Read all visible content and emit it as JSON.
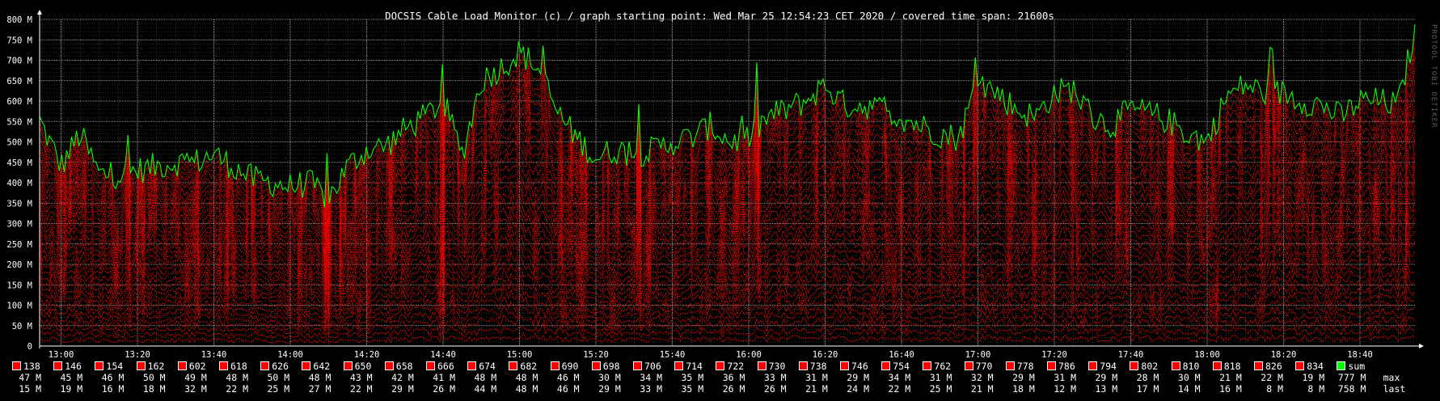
{
  "window": {
    "watermark": "PROTOOL TOBI OETIKER"
  },
  "chart_data": {
    "type": "area",
    "title": "DOCSIS Cable Load Monitor (c) / graph starting point: Wed Mar 25 12:54:23 CET 2020 / covered time span: 21600s",
    "xlabel": "",
    "ylabel": "",
    "x_ticks": [
      "13:00",
      "13:20",
      "13:40",
      "14:00",
      "14:20",
      "14:40",
      "15:00",
      "15:20",
      "15:40",
      "16:00",
      "16:20",
      "16:40",
      "17:00",
      "17:20",
      "17:40",
      "18:00",
      "18:20",
      "18:40"
    ],
    "x_range": [
      "12:54:23",
      "18:54:23"
    ],
    "y_ticks": [
      "0",
      "50 M",
      "100 M",
      "150 M",
      "200 M",
      "250 M",
      "300 M",
      "350 M",
      "400 M",
      "450 M",
      "500 M",
      "550 M",
      "600 M",
      "650 M",
      "700 M",
      "750 M",
      "800 M"
    ],
    "ylim": [
      0,
      800
    ],
    "grid": true,
    "legend_position": "bottom",
    "sum_profile": {
      "name": "sum",
      "x": [
        "12:54",
        "13:00",
        "13:05",
        "13:10",
        "13:15",
        "13:20",
        "13:25",
        "13:30",
        "13:35",
        "13:40",
        "13:45",
        "13:50",
        "13:55",
        "14:00",
        "14:05",
        "14:10",
        "14:15",
        "14:20",
        "14:25",
        "14:30",
        "14:35",
        "14:40",
        "14:45",
        "14:50",
        "14:55",
        "15:00",
        "15:05",
        "15:10",
        "15:15",
        "15:20",
        "15:25",
        "15:30",
        "15:35",
        "15:40",
        "15:45",
        "15:50",
        "15:55",
        "16:00",
        "16:05",
        "16:10",
        "16:15",
        "16:20",
        "16:25",
        "16:30",
        "16:35",
        "16:40",
        "16:45",
        "16:50",
        "16:55",
        "17:00",
        "17:05",
        "17:10",
        "17:15",
        "17:20",
        "17:25",
        "17:30",
        "17:35",
        "17:40",
        "17:45",
        "17:50",
        "17:55",
        "18:00",
        "18:05",
        "18:10",
        "18:15",
        "18:20",
        "18:25",
        "18:30",
        "18:35",
        "18:40",
        "18:45",
        "18:50",
        "18:54"
      ],
      "values": [
        560,
        440,
        520,
        420,
        420,
        430,
        440,
        450,
        450,
        470,
        440,
        410,
        400,
        390,
        400,
        360,
        440,
        480,
        490,
        530,
        560,
        600,
        470,
        650,
        680,
        720,
        680,
        570,
        510,
        460,
        480,
        470,
        480,
        500,
        510,
        540,
        500,
        510,
        560,
        580,
        600,
        640,
        590,
        590,
        580,
        560,
        540,
        520,
        510,
        650,
        620,
        580,
        560,
        620,
        630,
        560,
        540,
        580,
        570,
        550,
        520,
        500,
        610,
        640,
        620,
        620,
        600,
        590,
        560,
        600,
        600,
        590,
        760
      ]
    },
    "series": [
      {
        "name": "138",
        "max": "47 M",
        "last": "15 M",
        "color": "#ff0000"
      },
      {
        "name": "146",
        "max": "45 M",
        "last": "19 M",
        "color": "#ff0000"
      },
      {
        "name": "154",
        "max": "46 M",
        "last": "16 M",
        "color": "#ff0000"
      },
      {
        "name": "162",
        "max": "50 M",
        "last": "18 M",
        "color": "#ff0000"
      },
      {
        "name": "602",
        "max": "49 M",
        "last": "32 M",
        "color": "#ff0000"
      },
      {
        "name": "618",
        "max": "48 M",
        "last": "22 M",
        "color": "#ff0000"
      },
      {
        "name": "626",
        "max": "50 M",
        "last": "25 M",
        "color": "#ff0000"
      },
      {
        "name": "642",
        "max": "48 M",
        "last": "27 M",
        "color": "#ff0000"
      },
      {
        "name": "650",
        "max": "43 M",
        "last": "22 M",
        "color": "#ff0000"
      },
      {
        "name": "658",
        "max": "42 M",
        "last": "29 M",
        "color": "#ff0000"
      },
      {
        "name": "666",
        "max": "41 M",
        "last": "26 M",
        "color": "#ff0000"
      },
      {
        "name": "674",
        "max": "48 M",
        "last": "44 M",
        "color": "#ff0000"
      },
      {
        "name": "682",
        "max": "48 M",
        "last": "48 M",
        "color": "#ff0000"
      },
      {
        "name": "690",
        "max": "46 M",
        "last": "46 M",
        "color": "#ff0000"
      },
      {
        "name": "698",
        "max": "30 M",
        "last": "29 M",
        "color": "#ff0000"
      },
      {
        "name": "706",
        "max": "34 M",
        "last": "33 M",
        "color": "#ff0000"
      },
      {
        "name": "714",
        "max": "35 M",
        "last": "35 M",
        "color": "#ff0000"
      },
      {
        "name": "722",
        "max": "36 M",
        "last": "26 M",
        "color": "#ff0000"
      },
      {
        "name": "730",
        "max": "33 M",
        "last": "26 M",
        "color": "#ff0000"
      },
      {
        "name": "738",
        "max": "31 M",
        "last": "21 M",
        "color": "#ff0000"
      },
      {
        "name": "746",
        "max": "29 M",
        "last": "24 M",
        "color": "#ff0000"
      },
      {
        "name": "754",
        "max": "34 M",
        "last": "22 M",
        "color": "#ff0000"
      },
      {
        "name": "762",
        "max": "31 M",
        "last": "25 M",
        "color": "#ff0000"
      },
      {
        "name": "770",
        "max": "32 M",
        "last": "21 M",
        "color": "#ff0000"
      },
      {
        "name": "778",
        "max": "29 M",
        "last": "18 M",
        "color": "#ff0000"
      },
      {
        "name": "786",
        "max": "31 M",
        "last": "12 M",
        "color": "#ff0000"
      },
      {
        "name": "794",
        "max": "29 M",
        "last": "13 M",
        "color": "#ff0000"
      },
      {
        "name": "802",
        "max": "28 M",
        "last": "17 M",
        "color": "#ff0000"
      },
      {
        "name": "810",
        "max": "30 M",
        "last": "14 M",
        "color": "#ff0000"
      },
      {
        "name": "818",
        "max": "21 M",
        "last": "16 M",
        "color": "#ff0000"
      },
      {
        "name": "826",
        "max": "22 M",
        "last": "8 M",
        "color": "#ff0000"
      },
      {
        "name": "834",
        "max": "19 M",
        "last": "8 M",
        "color": "#ff0000"
      },
      {
        "name": "sum",
        "max": "777 M",
        "last": "758 M",
        "color": "#00ff00"
      }
    ],
    "legend_row_labels": {
      "max": "max",
      "last": "last"
    }
  }
}
